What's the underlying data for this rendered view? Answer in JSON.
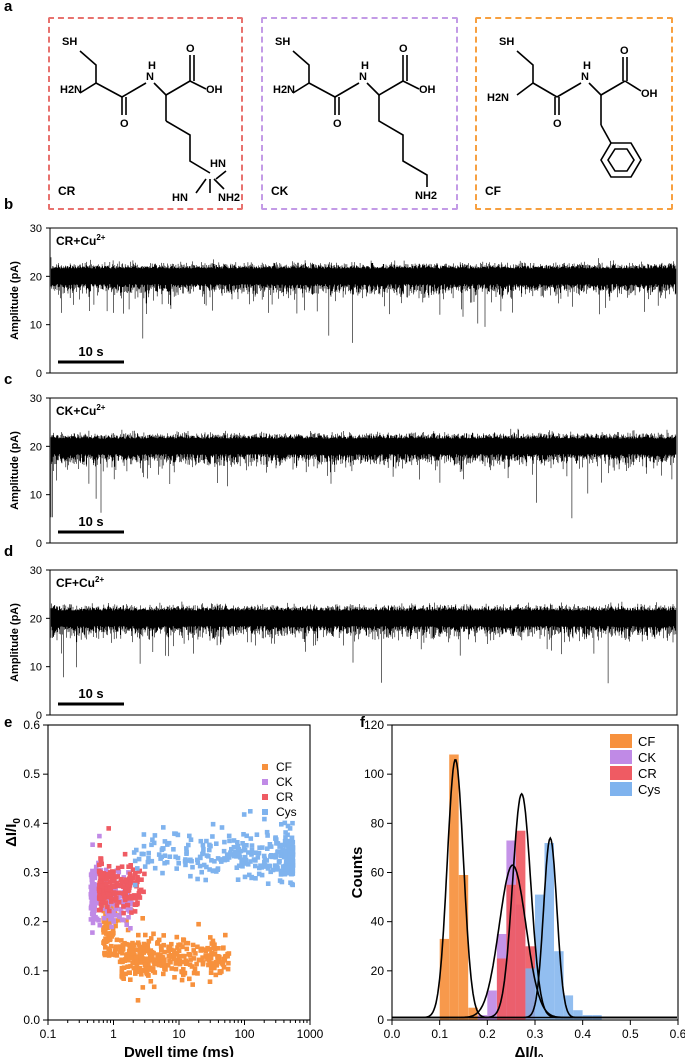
{
  "panel_labels": {
    "a": "a",
    "b": "b",
    "c": "c",
    "d": "d",
    "e": "e",
    "f": "f"
  },
  "molecules": [
    {
      "name": "CR",
      "color": "#e8726e",
      "atoms": {
        "sh": "SH",
        "h2n": "H2N",
        "nh": "N",
        "h": "H",
        "oh": "OH",
        "o1": "O",
        "o2": "O",
        "side_nh": "HN",
        "side_n": "HN",
        "side_nh2": "NH2"
      }
    },
    {
      "name": "CK",
      "color": "#c39be6",
      "atoms": {
        "sh": "SH",
        "h2n": "H2N",
        "nh": "N",
        "h": "H",
        "oh": "OH",
        "o1": "O",
        "o2": "O",
        "nh2": "NH2"
      }
    },
    {
      "name": "CF",
      "color": "#f7a040",
      "atoms": {
        "sh": "SH",
        "h2n": "H2N",
        "nh": "N",
        "h": "H",
        "oh": "OH",
        "o1": "O",
        "o2": "O"
      }
    }
  ],
  "traces": [
    {
      "panel": "b",
      "label": "CR+Cu",
      "superscript": "2+",
      "baseline": 20
    },
    {
      "panel": "c",
      "label": "CK+Cu",
      "superscript": "2+",
      "baseline": 20
    },
    {
      "panel": "d",
      "label": "CF+Cu",
      "superscript": "2+",
      "baseline": 20
    }
  ],
  "trace_axis": {
    "ylabel": "Amplitude (pA)",
    "yticks": [
      "0",
      "10",
      "20",
      "30"
    ],
    "ylim": [
      0,
      30
    ],
    "scalebar": "10 s"
  },
  "chart_data": [
    {
      "type": "scatter",
      "panel": "e",
      "xlabel": "Dwell time (ms)",
      "ylabel": "ΔI/I",
      "ylabel_sub": "0",
      "xscale": "log",
      "xlim": [
        0.1,
        1000
      ],
      "ylim": [
        0,
        0.6
      ],
      "xticks": [
        "0.1",
        "1",
        "10",
        "100",
        "1000"
      ],
      "yticks": [
        "0.0",
        "0.1",
        "0.2",
        "0.3",
        "0.4",
        "0.5",
        "0.6"
      ],
      "legend_position": "top-right",
      "series": [
        {
          "name": "CF",
          "color": "#f7913d",
          "cluster": {
            "x_range": [
              0.7,
              60
            ],
            "y_center": 0.125,
            "y_spread": 0.02
          }
        },
        {
          "name": "CK",
          "color": "#c08ae6",
          "cluster": {
            "x_range": [
              0.45,
              2.0
            ],
            "y_center": 0.25,
            "y_spread": 0.03
          }
        },
        {
          "name": "CR",
          "color": "#ef5b63",
          "cluster": {
            "x_range": [
              0.6,
              3.0
            ],
            "y_center": 0.27,
            "y_spread": 0.025
          }
        },
        {
          "name": "Cys",
          "color": "#7fb3ee",
          "cluster": {
            "x_range": [
              2,
              550
            ],
            "y_center": 0.33,
            "y_spread": 0.025
          }
        }
      ]
    },
    {
      "type": "bar",
      "panel": "f",
      "xlabel": "ΔI/I",
      "xlabel_sub": "0",
      "ylabel": "Counts",
      "xlim": [
        0,
        0.6
      ],
      "ylim": [
        0,
        120
      ],
      "xticks": [
        "0.0",
        "0.1",
        "0.2",
        "0.3",
        "0.4",
        "0.5",
        "0.6"
      ],
      "yticks": [
        "0",
        "20",
        "40",
        "60",
        "80",
        "100",
        "120"
      ],
      "bin_width": 0.02,
      "legend_position": "top-right",
      "series": [
        {
          "name": "CF",
          "color": "#f7913d",
          "bins": [
            [
              0.11,
              33
            ],
            [
              0.13,
              108
            ],
            [
              0.15,
              59
            ],
            [
              0.17,
              5
            ]
          ]
        },
        {
          "name": "CK",
          "color": "#c08ae6",
          "bins": [
            [
              0.19,
              2
            ],
            [
              0.21,
              12
            ],
            [
              0.23,
              35
            ],
            [
              0.25,
              73
            ],
            [
              0.27,
              47
            ],
            [
              0.29,
              7
            ]
          ]
        },
        {
          "name": "CR",
          "color": "#ef5b63",
          "bins": [
            [
              0.23,
              25
            ],
            [
              0.25,
              55
            ],
            [
              0.27,
              77
            ],
            [
              0.29,
              30
            ]
          ]
        },
        {
          "name": "Cys",
          "color": "#7fb3ee",
          "bins": [
            [
              0.29,
              21
            ],
            [
              0.31,
              51
            ],
            [
              0.33,
              72
            ],
            [
              0.35,
              28
            ],
            [
              0.37,
              10
            ],
            [
              0.39,
              4
            ],
            [
              0.41,
              2
            ],
            [
              0.43,
              2
            ]
          ]
        }
      ],
      "fits": [
        {
          "series": "CF",
          "mu": 0.133,
          "sigma": 0.017,
          "amp": 105
        },
        {
          "series": "CK",
          "mu": 0.253,
          "sigma": 0.028,
          "amp": 62
        },
        {
          "series": "CR",
          "mu": 0.272,
          "sigma": 0.019,
          "amp": 91
        },
        {
          "series": "Cys",
          "mu": 0.332,
          "sigma": 0.014,
          "amp": 73
        }
      ]
    }
  ]
}
